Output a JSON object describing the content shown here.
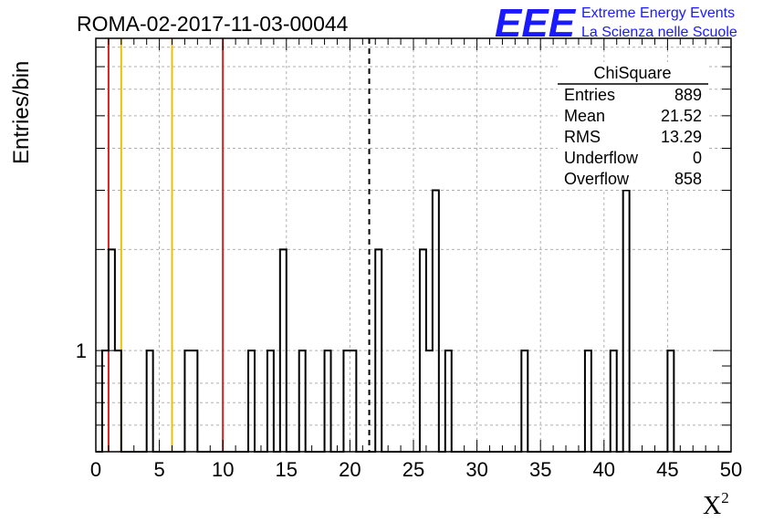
{
  "header": {
    "run_title": "ROMA-02-2017-11-03-00044",
    "logo_text": "EEE",
    "logo_line1": "Extreme Energy Events",
    "logo_line2": "La Scienza nelle Scuole",
    "logo_color": "#1a1aff"
  },
  "stats_box": {
    "title": "ChiSquare",
    "rows": [
      {
        "label": "Entries",
        "value": "889"
      },
      {
        "label": "Mean",
        "value": "21.52"
      },
      {
        "label": "RMS",
        "value": "13.29"
      },
      {
        "label": "Underflow",
        "value": "0"
      },
      {
        "label": "Overflow",
        "value": "858"
      }
    ]
  },
  "chart_data": {
    "type": "bar",
    "histogram": "step",
    "bin_width": 0.5,
    "x_label": "X",
    "x_label_superscript": "2",
    "y_label": "Entries/bin",
    "xlim": [
      0,
      50
    ],
    "ylim": [
      0.5,
      8.5
    ],
    "y_scale": "log",
    "grid": true,
    "x_ticks": [
      0,
      5,
      10,
      15,
      20,
      25,
      30,
      35,
      40,
      45,
      50
    ],
    "y_tick_labels": [
      {
        "value": 1,
        "label": "1"
      }
    ],
    "bins": [
      {
        "x": 0.5,
        "y": 1
      },
      {
        "x": 1.0,
        "y": 2
      },
      {
        "x": 1.5,
        "y": 1
      },
      {
        "x": 4.0,
        "y": 1
      },
      {
        "x": 7.0,
        "y": 1
      },
      {
        "x": 7.5,
        "y": 1
      },
      {
        "x": 12.0,
        "y": 1
      },
      {
        "x": 13.5,
        "y": 1
      },
      {
        "x": 14.5,
        "y": 2
      },
      {
        "x": 16.0,
        "y": 1
      },
      {
        "x": 18.0,
        "y": 1
      },
      {
        "x": 19.5,
        "y": 1
      },
      {
        "x": 20.0,
        "y": 1
      },
      {
        "x": 22.0,
        "y": 2
      },
      {
        "x": 25.5,
        "y": 2
      },
      {
        "x": 26.0,
        "y": 1
      },
      {
        "x": 26.5,
        "y": 3
      },
      {
        "x": 27.5,
        "y": 1
      },
      {
        "x": 33.5,
        "y": 1
      },
      {
        "x": 38.5,
        "y": 1
      },
      {
        "x": 40.5,
        "y": 1
      },
      {
        "x": 41.5,
        "y": 3
      },
      {
        "x": 45.0,
        "y": 1
      }
    ],
    "reference_lines": [
      {
        "x": 1.0,
        "color": "#d42020",
        "style": "solid"
      },
      {
        "x": 2.0,
        "color": "#f0c000",
        "style": "solid"
      },
      {
        "x": 6.0,
        "color": "#f0c000",
        "style": "solid"
      },
      {
        "x": 10.0,
        "color": "#d42020",
        "style": "solid"
      },
      {
        "x": 21.52,
        "color": "#000000",
        "style": "dashed"
      }
    ]
  }
}
